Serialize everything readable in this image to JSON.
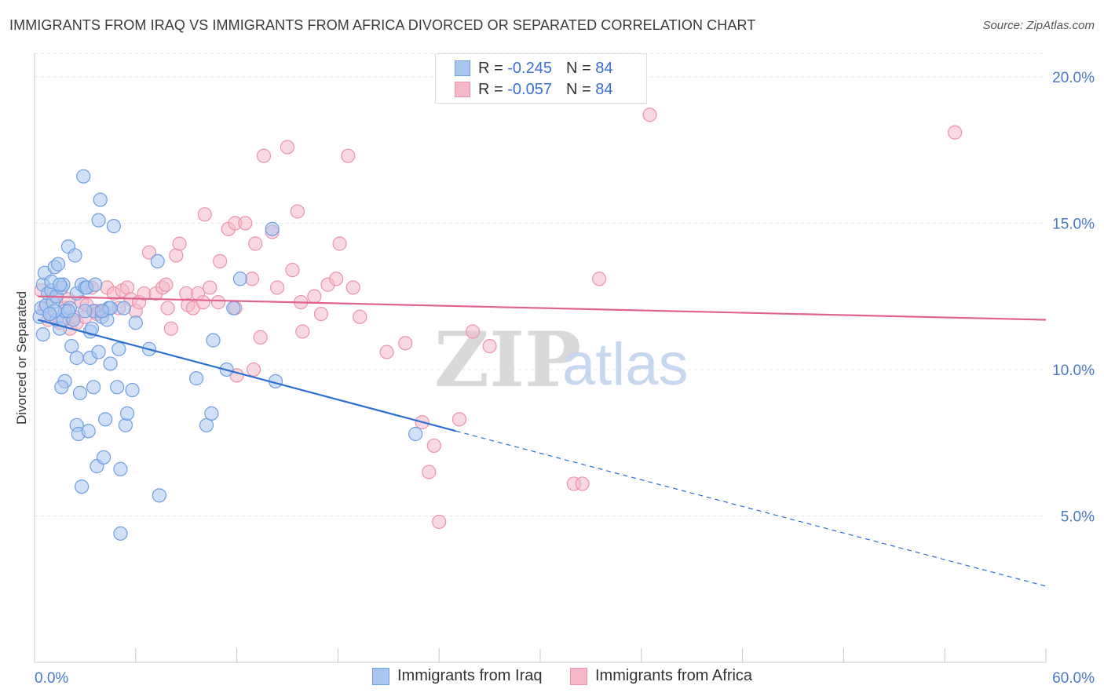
{
  "title": "IMMIGRANTS FROM IRAQ VS IMMIGRANTS FROM AFRICA DIVORCED OR SEPARATED CORRELATION CHART",
  "source": "Source: ZipAtlas.com",
  "watermark": {
    "zip": "ZIP",
    "atlas": "atlas"
  },
  "colors": {
    "iraq_fill": "#a9c6f0",
    "iraq_stroke": "#6f9fe0",
    "iraq_line": "#2c6fd0",
    "africa_fill": "#f5b8c9",
    "africa_stroke": "#ea93ad",
    "africa_line": "#e0638d",
    "tick_text": "#4a78c8",
    "grid": "#e6e6e6"
  },
  "stats": [
    {
      "r_label": "R =",
      "r_value": "-0.245",
      "n_label": "N =",
      "n_value": "84"
    },
    {
      "r_label": "R =",
      "r_value": "-0.057",
      "n_label": "N =",
      "n_value": "84"
    }
  ],
  "legend": [
    "Immigrants from Iraq",
    "Immigrants from Africa"
  ],
  "chart_data": {
    "type": "scatter",
    "title": "IMMIGRANTS FROM IRAQ VS IMMIGRANTS FROM AFRICA DIVORCED OR SEPARATED CORRELATION CHART",
    "xlabel": "",
    "ylabel": "Divorced or Separated",
    "xlim": [
      0,
      60
    ],
    "ylim": [
      0,
      20.8
    ],
    "x_tick_labels": [
      "0.0%",
      "60.0%"
    ],
    "y_ticks": [
      5,
      10,
      15,
      20
    ],
    "y_tick_labels": [
      "5.0%",
      "10.0%",
      "15.0%",
      "20.0%"
    ],
    "grid": true,
    "legend_position": "bottom-center",
    "series": [
      {
        "name": "Immigrants from Iraq",
        "r": -0.245,
        "n": 84,
        "trend": {
          "x_start": 0.2,
          "y_start": 11.7,
          "x_solid_end": 25,
          "y_solid_end": 7.9,
          "x_dash_end": 60,
          "y_dash_end": 2.6
        },
        "points": [
          [
            0.3,
            11.8
          ],
          [
            0.4,
            12.1
          ],
          [
            0.5,
            11.2
          ],
          [
            0.5,
            12.9
          ],
          [
            0.6,
            13.3
          ],
          [
            0.7,
            12.2
          ],
          [
            0.8,
            12.6
          ],
          [
            0.9,
            11.9
          ],
          [
            1.0,
            12.7
          ],
          [
            1.0,
            13.0
          ],
          [
            1.1,
            12.3
          ],
          [
            1.2,
            13.5
          ],
          [
            1.3,
            11.7
          ],
          [
            1.3,
            12.5
          ],
          [
            1.4,
            13.6
          ],
          [
            1.5,
            11.4
          ],
          [
            1.6,
            12.8
          ],
          [
            1.7,
            11.7
          ],
          [
            1.7,
            12.9
          ],
          [
            1.8,
            12.0
          ],
          [
            1.8,
            9.6
          ],
          [
            1.6,
            9.4
          ],
          [
            2.0,
            14.2
          ],
          [
            2.1,
            12.1
          ],
          [
            2.2,
            10.8
          ],
          [
            2.4,
            13.9
          ],
          [
            2.5,
            8.1
          ],
          [
            2.5,
            10.4
          ],
          [
            2.5,
            12.6
          ],
          [
            2.6,
            7.8
          ],
          [
            2.7,
            9.2
          ],
          [
            2.8,
            6.0
          ],
          [
            2.8,
            12.9
          ],
          [
            2.9,
            16.6
          ],
          [
            3.0,
            12.8
          ],
          [
            3.1,
            12.8
          ],
          [
            3.2,
            7.9
          ],
          [
            3.3,
            10.4
          ],
          [
            3.3,
            11.3
          ],
          [
            3.4,
            11.4
          ],
          [
            3.5,
            9.4
          ],
          [
            3.5,
            12.0
          ],
          [
            3.6,
            12.9
          ],
          [
            3.7,
            6.7
          ],
          [
            3.8,
            10.6
          ],
          [
            3.8,
            15.1
          ],
          [
            3.9,
            15.8
          ],
          [
            4.0,
            11.8
          ],
          [
            4.1,
            7.0
          ],
          [
            4.2,
            8.3
          ],
          [
            4.3,
            11.7
          ],
          [
            4.4,
            12.1
          ],
          [
            4.5,
            12.1
          ],
          [
            4.5,
            10.2
          ],
          [
            4.7,
            14.9
          ],
          [
            4.9,
            9.4
          ],
          [
            5.0,
            10.7
          ],
          [
            5.1,
            6.6
          ],
          [
            5.1,
            4.4
          ],
          [
            5.3,
            12.1
          ],
          [
            5.4,
            8.1
          ],
          [
            5.5,
            8.5
          ],
          [
            5.8,
            9.3
          ],
          [
            6.0,
            11.6
          ],
          [
            6.8,
            10.7
          ],
          [
            7.3,
            13.7
          ],
          [
            7.4,
            5.7
          ],
          [
            9.6,
            9.7
          ],
          [
            10.2,
            8.1
          ],
          [
            10.5,
            8.5
          ],
          [
            10.6,
            11.0
          ],
          [
            11.4,
            10.0
          ],
          [
            11.8,
            12.1
          ],
          [
            12.2,
            13.1
          ],
          [
            14.1,
            14.8
          ],
          [
            14.3,
            9.6
          ],
          [
            22.6,
            7.8
          ],
          [
            1.2,
            12.0
          ],
          [
            2.3,
            11.7
          ],
          [
            0.9,
            11.9
          ],
          [
            3.0,
            12.0
          ],
          [
            1.5,
            12.9
          ],
          [
            4.0,
            12.0
          ],
          [
            2.0,
            12.0
          ]
        ]
      },
      {
        "name": "Immigrants from Africa",
        "r": -0.057,
        "n": 84,
        "trend": {
          "x_start": 0.2,
          "y_start": 12.5,
          "x_end": 60,
          "y_end": 11.7
        },
        "points": [
          [
            0.4,
            12.7
          ],
          [
            0.6,
            12.1
          ],
          [
            0.8,
            11.7
          ],
          [
            1.0,
            11.8
          ],
          [
            1.2,
            12.5
          ],
          [
            1.5,
            11.6
          ],
          [
            1.8,
            12.1
          ],
          [
            2.0,
            12.4
          ],
          [
            2.1,
            11.4
          ],
          [
            2.3,
            11.8
          ],
          [
            2.5,
            11.6
          ],
          [
            2.8,
            12.3
          ],
          [
            3.0,
            11.8
          ],
          [
            3.1,
            12.2
          ],
          [
            3.4,
            12.8
          ],
          [
            3.6,
            12.0
          ],
          [
            3.7,
            11.9
          ],
          [
            3.9,
            12.0
          ],
          [
            4.1,
            12.0
          ],
          [
            4.3,
            12.8
          ],
          [
            4.7,
            12.6
          ],
          [
            5.0,
            12.1
          ],
          [
            5.2,
            12.7
          ],
          [
            5.5,
            12.8
          ],
          [
            5.7,
            12.4
          ],
          [
            6.0,
            12.0
          ],
          [
            6.2,
            12.3
          ],
          [
            6.5,
            12.6
          ],
          [
            6.8,
            14.0
          ],
          [
            7.2,
            12.6
          ],
          [
            7.6,
            12.8
          ],
          [
            7.8,
            12.9
          ],
          [
            7.9,
            12.1
          ],
          [
            8.1,
            11.4
          ],
          [
            8.4,
            13.9
          ],
          [
            8.6,
            14.3
          ],
          [
            9.0,
            12.6
          ],
          [
            9.1,
            12.2
          ],
          [
            9.4,
            12.1
          ],
          [
            9.7,
            12.6
          ],
          [
            10.0,
            12.3
          ],
          [
            10.1,
            15.3
          ],
          [
            10.4,
            12.8
          ],
          [
            10.9,
            12.3
          ],
          [
            11.0,
            13.7
          ],
          [
            11.5,
            14.8
          ],
          [
            11.9,
            12.1
          ],
          [
            11.9,
            15.0
          ],
          [
            12.5,
            15.0
          ],
          [
            12.9,
            13.1
          ],
          [
            13.1,
            14.3
          ],
          [
            13.4,
            11.1
          ],
          [
            13.6,
            17.3
          ],
          [
            14.1,
            14.7
          ],
          [
            14.4,
            12.8
          ],
          [
            15.0,
            17.6
          ],
          [
            15.3,
            13.4
          ],
          [
            15.6,
            15.4
          ],
          [
            15.8,
            12.3
          ],
          [
            15.9,
            11.3
          ],
          [
            16.6,
            12.5
          ],
          [
            17.0,
            11.9
          ],
          [
            17.4,
            12.9
          ],
          [
            17.9,
            13.1
          ],
          [
            18.1,
            14.3
          ],
          [
            18.6,
            17.3
          ],
          [
            18.9,
            12.8
          ],
          [
            19.3,
            11.8
          ],
          [
            20.9,
            10.6
          ],
          [
            22.0,
            10.9
          ],
          [
            23.0,
            8.2
          ],
          [
            23.4,
            6.5
          ],
          [
            23.7,
            7.4
          ],
          [
            24.0,
            4.8
          ],
          [
            25.2,
            8.3
          ],
          [
            26.0,
            11.3
          ],
          [
            27.0,
            10.8
          ],
          [
            32.0,
            6.1
          ],
          [
            32.5,
            6.1
          ],
          [
            33.5,
            13.1
          ],
          [
            36.5,
            18.7
          ],
          [
            54.6,
            18.1
          ],
          [
            12.0,
            9.8
          ],
          [
            13.0,
            10.0
          ]
        ]
      }
    ]
  }
}
